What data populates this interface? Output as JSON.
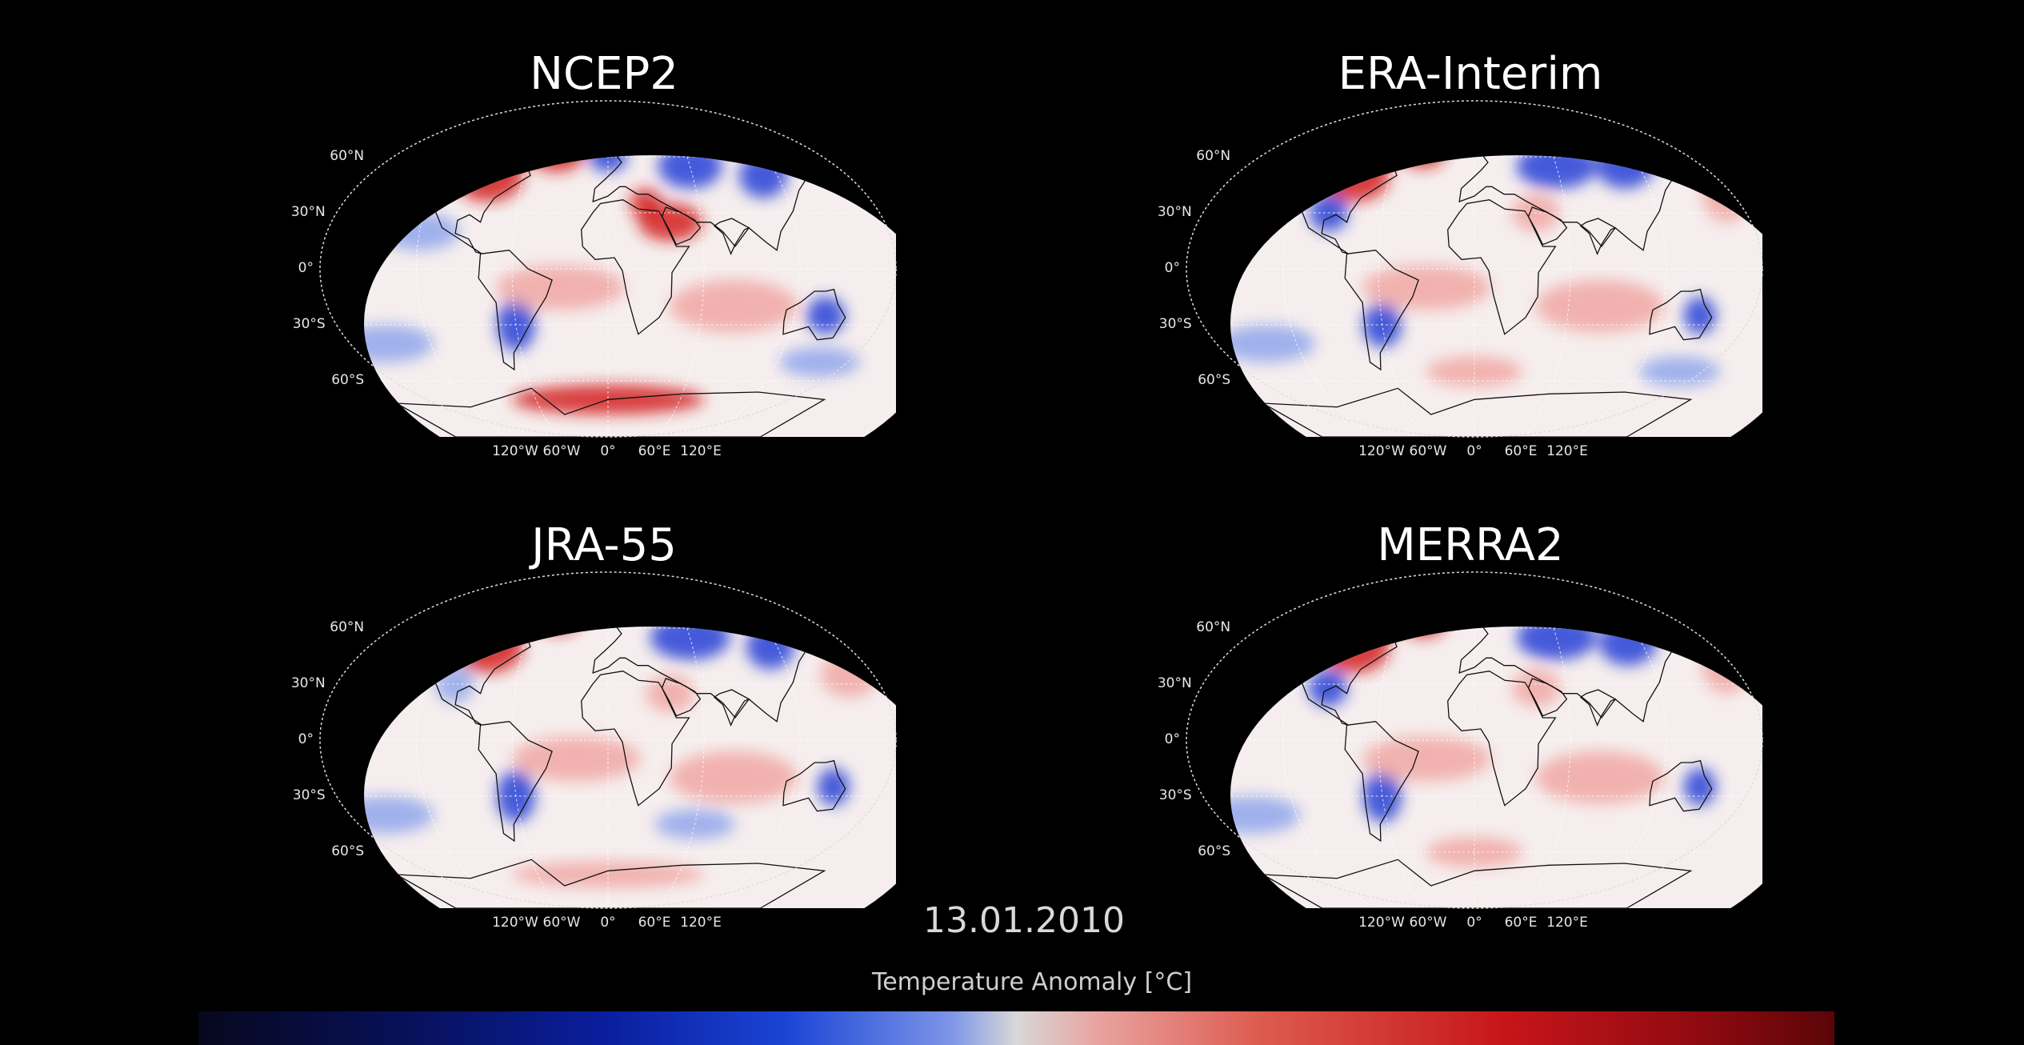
{
  "panels": [
    {
      "id": "ncep2",
      "title": "NCEP2",
      "variant": 1
    },
    {
      "id": "era",
      "title": "ERA-Interim",
      "variant": 2
    },
    {
      "id": "jra",
      "title": "JRA-55",
      "variant": 3
    },
    {
      "id": "merra",
      "title": "MERRA2",
      "variant": 4
    }
  ],
  "lat_labels": [
    "60°N",
    "30°N",
    "0°",
    "30°S",
    "60°S"
  ],
  "lon_labels": [
    "120°W",
    "60°W",
    "0°",
    "60°E",
    "120°E"
  ],
  "date": "13.01.2010",
  "colorbar": {
    "label": "Temperature Anomaly [°C]",
    "cold_color": "#0a1e9e",
    "neutral_color": "#d8d8d8",
    "warm_color": "#c6151a"
  }
}
